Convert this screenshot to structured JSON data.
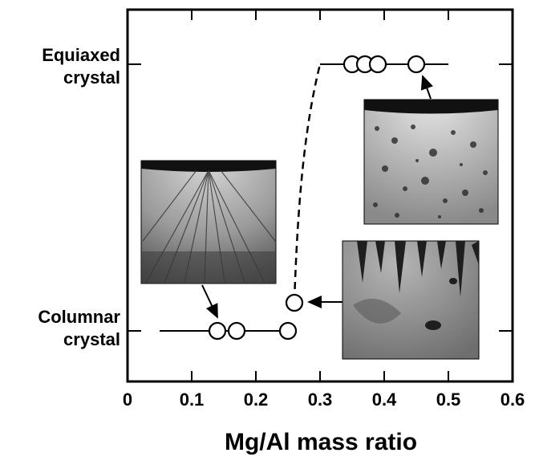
{
  "chart_data": {
    "type": "scatter",
    "title": "",
    "xlabel": "Mg/Al mass ratio",
    "ylabel": "",
    "xlim": [
      0,
      0.6
    ],
    "x_ticks": [
      "0",
      "0.1",
      "0.2",
      "0.3",
      "0.4",
      "0.5",
      "0.6"
    ],
    "y_categories": [
      "Columnar crystal",
      "Equiaxed crystal"
    ],
    "y_category_labels": [
      {
        "line1": "Columnar",
        "line2": "crystal"
      },
      {
        "line1": "Equiaxed",
        "line2": "crystal"
      }
    ],
    "grid": false,
    "legend": false,
    "series": [
      {
        "points": [
          {
            "x": 0.14,
            "y": "Columnar crystal"
          },
          {
            "x": 0.17,
            "y": "Columnar crystal"
          },
          {
            "x": 0.25,
            "y": "Columnar crystal"
          },
          {
            "x": 0.26,
            "y": "Columnar crystal",
            "offset": "raised"
          },
          {
            "x": 0.35,
            "y": "Equiaxed crystal"
          },
          {
            "x": 0.37,
            "y": "Equiaxed crystal"
          },
          {
            "x": 0.39,
            "y": "Equiaxed crystal"
          },
          {
            "x": 0.45,
            "y": "Equiaxed crystal"
          }
        ],
        "marker": "open-circle"
      }
    ],
    "range_lines": [
      {
        "y": "Columnar crystal",
        "x": [
          0.05,
          0.26
        ]
      },
      {
        "y": "Equiaxed crystal",
        "x": [
          0.3,
          0.5
        ]
      }
    ],
    "transition": {
      "from_x": 0.26,
      "to_x": 0.3,
      "style": "dashed"
    },
    "insets": [
      {
        "name": "columnar-micrograph-1",
        "points_to": {
          "x": 0.14,
          "y": "Columnar crystal"
        }
      },
      {
        "name": "columnar-micrograph-2",
        "points_to": {
          "x": 0.26,
          "y": "Columnar crystal"
        }
      },
      {
        "name": "equiaxed-micrograph",
        "points_to": {
          "x": 0.45,
          "y": "Equiaxed crystal"
        }
      }
    ]
  },
  "colors": {
    "ink": "#000000",
    "background": "#ffffff"
  }
}
